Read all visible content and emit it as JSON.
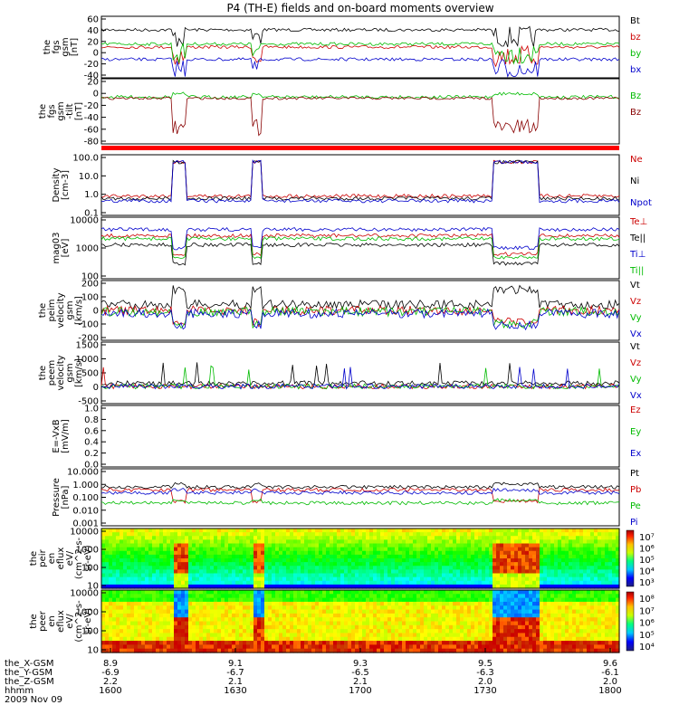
{
  "chart_data": {
    "type": "line",
    "title": "P4 (TH-E) fields and on-board moments overview",
    "x_ticks": [
      "1600",
      "1630",
      "1700",
      "1730",
      "1800"
    ],
    "footer": {
      "row_labels": [
        "the_X-GSM",
        "the_Y-GSM",
        "the_Z-GSM",
        "hhmm",
        "2009 Nov 09"
      ],
      "columns": [
        [
          "8.9",
          "-6.9",
          "2.2",
          "1600"
        ],
        [
          "9.1",
          "-6.7",
          "2.1",
          "1630"
        ],
        [
          "9.3",
          "-6.5",
          "2.1",
          "1700"
        ],
        [
          "9.5",
          "-6.3",
          "2.0",
          "1730"
        ],
        [
          "9.6",
          "-6.1",
          "2.0",
          "1800"
        ]
      ]
    },
    "panels": [
      {
        "ylabel": [
          "the",
          "fgs",
          "gsm",
          "[nT]"
        ],
        "ticks": [
          "60",
          "40",
          "20",
          "0",
          "-20",
          "-40"
        ],
        "legend": [
          {
            "name": "Bt",
            "color": "#000000"
          },
          {
            "name": "bz",
            "color": "#cc0000"
          },
          {
            "name": "by",
            "color": "#00bb00"
          },
          {
            "name": "bx",
            "color": "#0000cc"
          }
        ]
      },
      {
        "ylabel": [
          "the",
          "fgs",
          "gsm",
          "-tilt",
          "[nT]"
        ],
        "ticks": [
          "20",
          "0",
          "-20",
          "-40",
          "-60",
          "-80"
        ],
        "legend": [
          {
            "name": "Bz",
            "color": "#00bb00"
          },
          {
            "name": "Bz",
            "color": "#880000"
          }
        ]
      },
      {
        "ylabel": [
          "Density",
          "[cm-3]"
        ],
        "ticks": [
          "100.0",
          "10.0",
          "1.0",
          "0.1"
        ],
        "legend": [
          {
            "name": "Ne",
            "color": "#cc0000"
          },
          {
            "name": "Ni",
            "color": "#000000"
          },
          {
            "name": "Npot",
            "color": "#0000cc"
          }
        ]
      },
      {
        "ylabel": [
          "mag03",
          "[eV]"
        ],
        "ticks": [
          "10000",
          "1000",
          "100"
        ],
        "legend": [
          {
            "name": "Te⊥",
            "color": "#cc0000"
          },
          {
            "name": "Te||",
            "color": "#000000"
          },
          {
            "name": "Ti⊥",
            "color": "#0000cc"
          },
          {
            "name": "Ti||",
            "color": "#00bb00"
          }
        ]
      },
      {
        "ylabel": [
          "the",
          "peim",
          "velocity",
          "gsm",
          "[km/s]"
        ],
        "ticks": [
          "200",
          "100",
          "0",
          "-100",
          "-200"
        ],
        "legend": [
          {
            "name": "Vt",
            "color": "#000000"
          },
          {
            "name": "Vz",
            "color": "#cc0000"
          },
          {
            "name": "Vy",
            "color": "#00bb00"
          },
          {
            "name": "Vx",
            "color": "#0000cc"
          }
        ]
      },
      {
        "ylabel": [
          "the",
          "peem",
          "velocity",
          "gsm",
          "[km/s]"
        ],
        "ticks": [
          "1500",
          "1000",
          "500",
          "0",
          "-500"
        ],
        "legend": [
          {
            "name": "Vt",
            "color": "#000000"
          },
          {
            "name": "Vz",
            "color": "#cc0000"
          },
          {
            "name": "Vy",
            "color": "#00bb00"
          },
          {
            "name": "Vx",
            "color": "#0000cc"
          }
        ]
      },
      {
        "ylabel": [
          "E=-VxB",
          "[mV/m]"
        ],
        "ticks": [
          "1.0",
          "0.8",
          "0.6",
          "0.4",
          "0.2",
          "0.0"
        ],
        "legend": [
          {
            "name": "Ez",
            "color": "#cc0000"
          },
          {
            "name": "Ey",
            "color": "#00bb00"
          },
          {
            "name": "Ex",
            "color": "#0000cc"
          }
        ]
      },
      {
        "ylabel": [
          "Pressure",
          "[nPa]"
        ],
        "ticks": [
          "10.000",
          "1.000",
          "0.100",
          "0.010",
          "0.001"
        ],
        "legend": [
          {
            "name": "Pt",
            "color": "#000000"
          },
          {
            "name": "Pb",
            "color": "#cc0000"
          },
          {
            "name": "Pe",
            "color": "#00bb00"
          },
          {
            "name": "Pi",
            "color": "#0000cc"
          }
        ]
      },
      {
        "ylabel": [
          "the",
          "peir",
          "en",
          "eflux",
          "eV/",
          "(cm^2-s-",
          "sr-eV)"
        ],
        "ticks": [
          "10000",
          "1000",
          "100",
          "10"
        ],
        "colorbar": [
          "10⁷",
          "10⁶",
          "10⁵",
          "10⁴",
          "10³"
        ]
      },
      {
        "ylabel": [
          "the",
          "peer",
          "en",
          "eflux",
          "eV/",
          "(cm^2-s-",
          "sr-eV)"
        ],
        "ticks": [
          "10000",
          "1000",
          "100",
          "10"
        ],
        "colorbar": [
          "10⁸",
          "10⁷",
          "10⁶",
          "10⁵",
          "10⁴"
        ]
      }
    ]
  }
}
